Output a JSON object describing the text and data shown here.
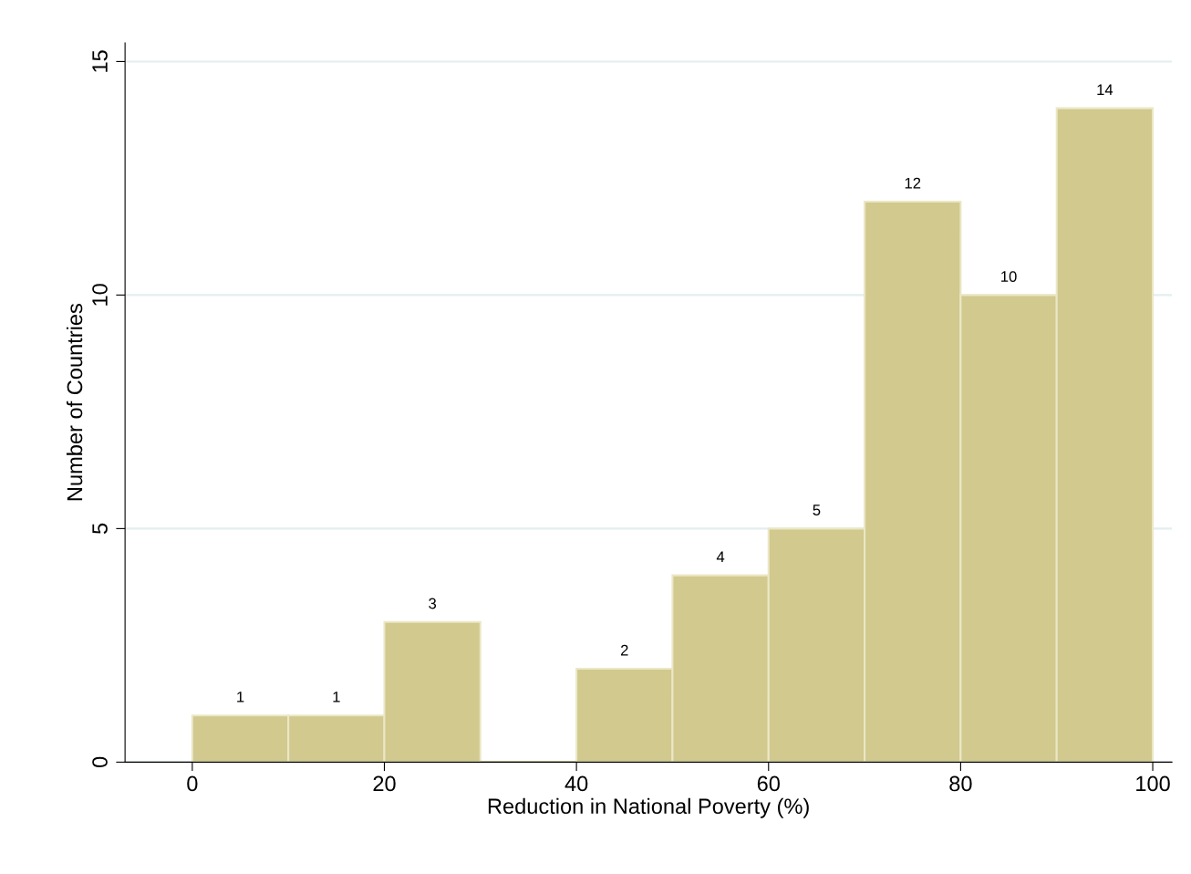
{
  "chart_data": {
    "type": "histogram",
    "xlabel": "Reduction in National Poverty (%)",
    "ylabel": "Number of Countries",
    "bins": [
      0,
      10,
      20,
      30,
      40,
      50,
      60,
      70,
      80,
      90,
      100
    ],
    "values": [
      1,
      1,
      3,
      0,
      2,
      4,
      5,
      12,
      10,
      14
    ],
    "value_labels": [
      "1",
      "1",
      "3",
      null,
      "2",
      "4",
      "5",
      "12",
      "10",
      "14"
    ],
    "color": "#d1c98d",
    "xlim": [
      -7,
      102
    ],
    "ylim": [
      0,
      15.4
    ],
    "xticks": [
      0,
      20,
      40,
      60,
      80,
      100
    ],
    "yticks": [
      0,
      5,
      10,
      15
    ],
    "grid": "y"
  }
}
